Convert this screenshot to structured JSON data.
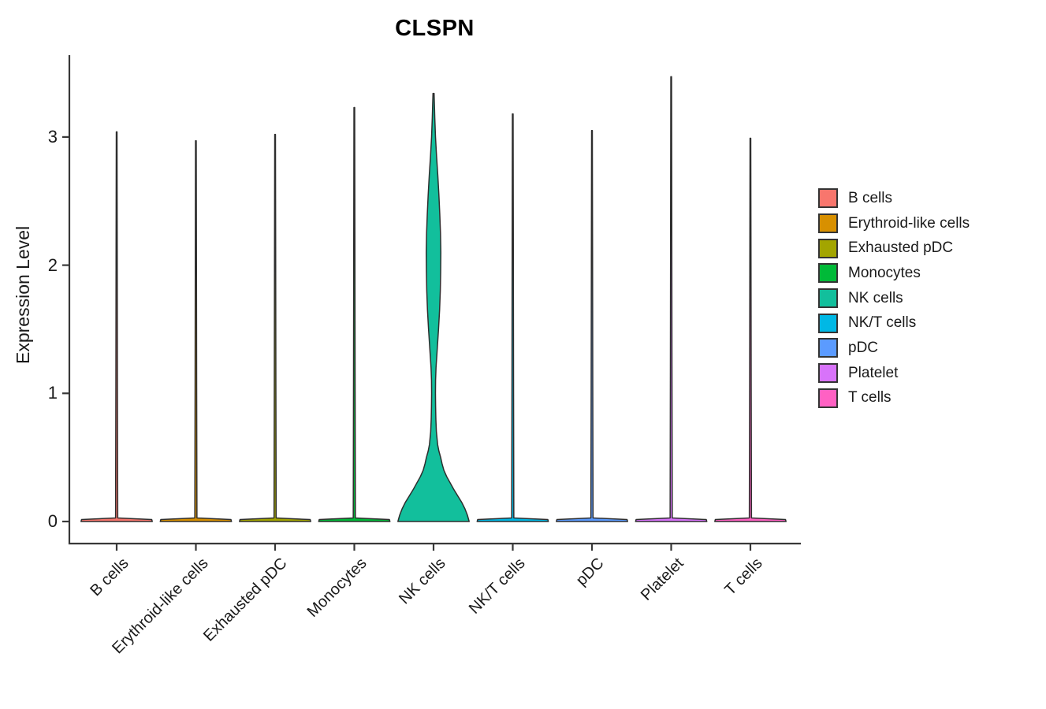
{
  "title": "CLSPN",
  "axes": {
    "y_label": "Expression Level",
    "y_tick_labels": [
      "0",
      "1",
      "2",
      "3"
    ],
    "x_tick_labels": [
      "B cells",
      "Erythroid-like cells",
      "Exhausted pDC",
      "Monocytes",
      "NK cells",
      "NK/T cells",
      "pDC",
      "Platelet",
      "T cells"
    ]
  },
  "legend": {
    "items": [
      {
        "label": "B cells",
        "color": "#F8766D"
      },
      {
        "label": "Erythroid-like cells",
        "color": "#D89000"
      },
      {
        "label": "Exhausted pDC",
        "color": "#A3A500"
      },
      {
        "label": "Monocytes",
        "color": "#00BA38"
      },
      {
        "label": "NK cells",
        "color": "#12BF9C"
      },
      {
        "label": "NK/T cells",
        "color": "#00B8E5"
      },
      {
        "label": "pDC",
        "color": "#5B9BFF"
      },
      {
        "label": "Platelet",
        "color": "#D873FA"
      },
      {
        "label": "T cells",
        "color": "#FF61C3"
      }
    ]
  },
  "chart_data": {
    "type": "violin",
    "title": "CLSPN",
    "xlabel": "",
    "ylabel": "Expression Level",
    "ylim": [
      0,
      3.65
    ],
    "y_ticks": [
      0,
      1,
      2,
      3
    ],
    "grid": false,
    "legend_position": "right",
    "categories": [
      "B cells",
      "Erythroid-like cells",
      "Exhausted pDC",
      "Monocytes",
      "NK cells",
      "NK/T cells",
      "pDC",
      "Platelet",
      "T cells"
    ],
    "violins": [
      {
        "name": "B cells",
        "color": "#F8766D",
        "max_expression": 3.04,
        "profile": [
          [
            0,
            1.0
          ],
          [
            0.015,
            0.985
          ],
          [
            0.028,
            0.03
          ],
          [
            1.06,
            0.022
          ],
          [
            2.13,
            0.016
          ],
          [
            3.04,
            0.01
          ]
        ]
      },
      {
        "name": "Erythroid-like cells",
        "color": "#D89000",
        "max_expression": 2.97,
        "profile": [
          [
            0,
            1.0
          ],
          [
            0.015,
            0.985
          ],
          [
            0.028,
            0.03
          ],
          [
            1.04,
            0.022
          ],
          [
            2.08,
            0.016
          ],
          [
            2.97,
            0.01
          ]
        ]
      },
      {
        "name": "Exhausted pDC",
        "color": "#A3A500",
        "max_expression": 3.02,
        "profile": [
          [
            0,
            1.0
          ],
          [
            0.015,
            0.985
          ],
          [
            0.028,
            0.03
          ],
          [
            1.06,
            0.022
          ],
          [
            2.11,
            0.016
          ],
          [
            3.02,
            0.01
          ]
        ]
      },
      {
        "name": "Monocytes",
        "color": "#00BA38",
        "max_expression": 3.23,
        "profile": [
          [
            0,
            1.0
          ],
          [
            0.015,
            0.985
          ],
          [
            0.028,
            0.03
          ],
          [
            1.13,
            0.022
          ],
          [
            2.26,
            0.016
          ],
          [
            3.23,
            0.01
          ]
        ]
      },
      {
        "name": "NK cells",
        "color": "#12BF9C",
        "max_expression": 3.34,
        "profile": [
          [
            0,
            1.0
          ],
          [
            0.05,
            0.95
          ],
          [
            0.1,
            0.88
          ],
          [
            0.15,
            0.79
          ],
          [
            0.2,
            0.68
          ],
          [
            0.25,
            0.57
          ],
          [
            0.3,
            0.47
          ],
          [
            0.35,
            0.37
          ],
          [
            0.4,
            0.29
          ],
          [
            0.45,
            0.24
          ],
          [
            0.5,
            0.2
          ],
          [
            0.55,
            0.15
          ],
          [
            0.6,
            0.115
          ],
          [
            0.7,
            0.08
          ],
          [
            0.8,
            0.065
          ],
          [
            0.9,
            0.058
          ],
          [
            1.0,
            0.054
          ],
          [
            1.1,
            0.057
          ],
          [
            1.2,
            0.07
          ],
          [
            1.35,
            0.105
          ],
          [
            1.5,
            0.14
          ],
          [
            1.65,
            0.17
          ],
          [
            1.8,
            0.19
          ],
          [
            1.95,
            0.2
          ],
          [
            2.1,
            0.205
          ],
          [
            2.25,
            0.195
          ],
          [
            2.4,
            0.175
          ],
          [
            2.55,
            0.15
          ],
          [
            2.7,
            0.12
          ],
          [
            2.85,
            0.085
          ],
          [
            3.0,
            0.055
          ],
          [
            3.15,
            0.035
          ],
          [
            3.25,
            0.025
          ],
          [
            3.34,
            0.015
          ]
        ]
      },
      {
        "name": "NK/T cells",
        "color": "#00B8E5",
        "max_expression": 3.18,
        "profile": [
          [
            0,
            1.0
          ],
          [
            0.015,
            0.985
          ],
          [
            0.028,
            0.03
          ],
          [
            1.11,
            0.022
          ],
          [
            2.23,
            0.016
          ],
          [
            3.18,
            0.01
          ]
        ]
      },
      {
        "name": "pDC",
        "color": "#5B9BFF",
        "max_expression": 3.05,
        "profile": [
          [
            0,
            1.0
          ],
          [
            0.015,
            0.985
          ],
          [
            0.028,
            0.03
          ],
          [
            1.07,
            0.022
          ],
          [
            2.14,
            0.016
          ],
          [
            3.05,
            0.01
          ]
        ]
      },
      {
        "name": "Platelet",
        "color": "#D873FA",
        "max_expression": 3.47,
        "profile": [
          [
            0,
            1.0
          ],
          [
            0.015,
            0.985
          ],
          [
            0.028,
            0.03
          ],
          [
            1.21,
            0.022
          ],
          [
            2.43,
            0.016
          ],
          [
            3.47,
            0.01
          ]
        ]
      },
      {
        "name": "T cells",
        "color": "#FF61C3",
        "max_expression": 2.99,
        "profile": [
          [
            0,
            1.0
          ],
          [
            0.015,
            0.985
          ],
          [
            0.028,
            0.03
          ],
          [
            1.05,
            0.022
          ],
          [
            2.09,
            0.016
          ],
          [
            2.99,
            0.01
          ]
        ]
      }
    ]
  },
  "colors": {
    "axis": "#383838",
    "violin_stroke": "#2e2e2e",
    "text": "#1a1a1a",
    "background": "#ffffff"
  }
}
